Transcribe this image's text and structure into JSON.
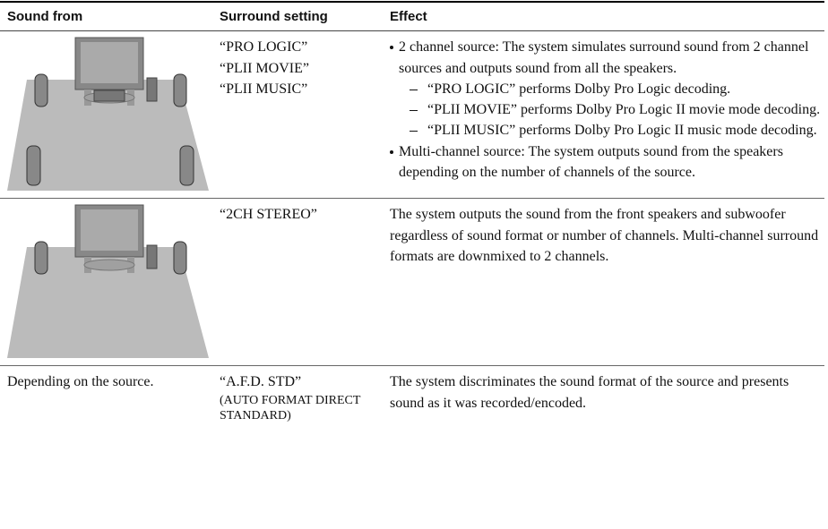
{
  "header": {
    "columns": [
      "Sound from",
      "Surround setting",
      "Effect"
    ]
  },
  "rows": [
    {
      "settings": [
        "“PRO LOGIC”",
        "“PLII MOVIE”",
        "“PLII MUSIC”"
      ],
      "bullets": [
        {
          "text": "2 channel source: The system simulates surround sound from 2 channel sources and outputs sound from all the speakers.",
          "items": [
            "“PRO LOGIC” performs Dolby Pro Logic decoding.",
            "“PLII MOVIE” performs Dolby Pro Logic II movie mode decoding.",
            "“PLII MUSIC” performs Dolby Pro Logic II music mode decoding."
          ]
        },
        {
          "text": "Multi-channel source: The system outputs sound from the speakers depending on the number of channels of the source."
        }
      ]
    },
    {
      "settings": [
        "“2CH STEREO”"
      ],
      "effect": "The system outputs the sound from the front speakers and subwoofer regardless of sound format or number of channels. Multi-channel surround formats are downmixed to 2 channels."
    },
    {
      "sound_from": "Depending on the source.",
      "settings": [
        "“A.F.D. STD”",
        "(AUTO FORMAT DIRECT STANDARD)"
      ],
      "effect": "The system discriminates the sound format of the source and presents sound as it was recorded/encoded."
    }
  ]
}
